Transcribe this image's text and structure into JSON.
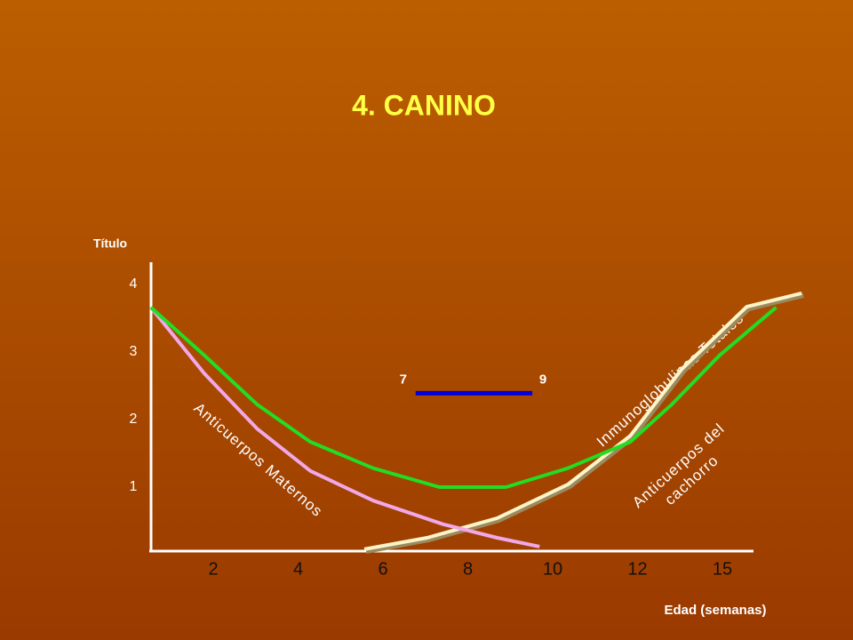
{
  "chart_data": {
    "type": "line",
    "title": "4. CANINO",
    "ylabel": "Título",
    "xlabel": "Edad (semanas)",
    "ylim": [
      0,
      4.35
    ],
    "yticks": [
      1,
      2,
      3,
      4
    ],
    "xticks": [
      2,
      4,
      6,
      8,
      10,
      12,
      15
    ],
    "series": [
      {
        "name": "Inmunoglobulinas Totales",
        "color": "#22dd22",
        "x": [
          0.53,
          1.79,
          3.04,
          4.29,
          5.77,
          7.33,
          8.9,
          10.36,
          11.83,
          13.2,
          14.9,
          16.9
        ],
        "values": [
          3.66,
          2.95,
          2.22,
          1.67,
          1.28,
          1.0,
          1.0,
          1.28,
          1.67,
          2.22,
          2.95,
          3.66
        ]
      },
      {
        "name": "Anticuerpos Maternos",
        "color": "#f0a8e8",
        "x": [
          0.53,
          1.79,
          3.04,
          4.29,
          5.77,
          7.42,
          8.69,
          9.69
        ],
        "values": [
          3.66,
          2.68,
          1.86,
          1.24,
          0.8,
          0.45,
          0.25,
          0.12
        ]
      },
      {
        "name": "Anticuerpos del cachorro",
        "color": "#fff4c8",
        "x": [
          5.56,
          7.04,
          8.69,
          10.36,
          11.83,
          13.57,
          15.86,
          17.8
        ],
        "values": [
          0.08,
          0.25,
          0.54,
          1.04,
          1.76,
          2.75,
          3.67,
          3.87
        ]
      }
    ],
    "range": {
      "labels": [
        "7",
        "9"
      ],
      "x": [
        6.77,
        9.52
      ],
      "y": 2.39,
      "color": "#0000dd"
    }
  }
}
